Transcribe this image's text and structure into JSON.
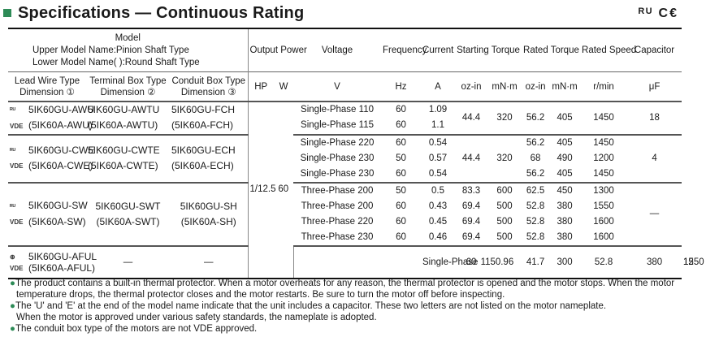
{
  "title": "Specifications — Continuous Rating",
  "certifications": "ᴿᵁ C€",
  "header": {
    "model": "Model",
    "upper_model": "Upper Model Name:Pinion Shaft Type",
    "lower_model": "Lower Model Name( ):Round Shaft Type",
    "lead_wire": "Lead Wire Type",
    "terminal_box": "Terminal Box Type",
    "conduit_box": "Conduit Box Type",
    "dim1": "Dimension ①",
    "dim2": "Dimension ②",
    "dim3": "Dimension ③",
    "output_power": "Output Power",
    "voltage": "Voltage",
    "frequency": "Frequency",
    "current": "Current",
    "starting_torque": "Starting Torque",
    "rated_torque": "Rated Torque",
    "rated_speed": "Rated Speed",
    "capacitor": "Capacitor",
    "u_hp": "HP",
    "u_w": "W",
    "u_v": "V",
    "u_hz": "Hz",
    "u_a": "A",
    "u_ozin": "oz-in",
    "u_nm": "mN·m",
    "u_ozin2": "oz-in",
    "u_nm2": "mN·m",
    "u_rmin": "r/min",
    "u_uf": "μF"
  },
  "output": {
    "hp": "1/12.5",
    "w": "60"
  },
  "groups": [
    {
      "lead": "5IK60GU-AWU",
      "lead_round": "(5IK60A-AWU)",
      "term": "5IK60GU-AWTU",
      "term_round": "(5IK60A-AWTU)",
      "cond": "5IK60GU-FCH",
      "cond_round": "(5IK60A-FCH)",
      "rows": [
        {
          "voltage": "Single-Phase 110",
          "freq": "60",
          "current": "1.09"
        },
        {
          "voltage": "Single-Phase 115",
          "freq": "60",
          "current": "1.1"
        }
      ],
      "st_oz": "44.4",
      "st_nm": "320",
      "rt_oz": "56.2",
      "rt_nm": "405",
      "speed": "1450",
      "cap": "18"
    },
    {
      "lead": "5IK60GU-CWE",
      "lead_round": "(5IK60A-CWE)",
      "term": "5IK60GU-CWTE",
      "term_round": "(5IK60A-CWTE)",
      "cond": "5IK60GU-ECH",
      "cond_round": "(5IK60A-ECH)",
      "rows": [
        {
          "voltage": "Single-Phase 220",
          "freq": "60",
          "current": "0.54",
          "rt_oz": "56.2",
          "rt_nm": "405",
          "speed": "1450"
        },
        {
          "voltage": "Single-Phase 230",
          "freq": "50",
          "current": "0.57",
          "rt_oz": "68",
          "rt_nm": "490",
          "speed": "1200"
        },
        {
          "voltage": "Single-Phase 230",
          "freq": "60",
          "current": "0.54",
          "rt_oz": "56.2",
          "rt_nm": "405",
          "speed": "1450"
        }
      ],
      "st_oz": "44.4",
      "st_nm": "320",
      "cap": "4"
    },
    {
      "lead": "5IK60GU-SW",
      "lead_round": "(5IK60A-SW)",
      "term": "5IK60GU-SWT",
      "term_round": "(5IK60A-SWT)",
      "cond": "5IK60GU-SH",
      "cond_round": "(5IK60A-SH)",
      "rows": [
        {
          "voltage": "Three-Phase 200",
          "freq": "50",
          "current": "0.5",
          "st_oz": "83.3",
          "st_nm": "600",
          "rt_oz": "62.5",
          "rt_nm": "450",
          "speed": "1300"
        },
        {
          "voltage": "Three-Phase 200",
          "freq": "60",
          "current": "0.43",
          "st_oz": "69.4",
          "st_nm": "500",
          "rt_oz": "52.8",
          "rt_nm": "380",
          "speed": "1550"
        },
        {
          "voltage": "Three-Phase 220",
          "freq": "60",
          "current": "0.45",
          "st_oz": "69.4",
          "st_nm": "500",
          "rt_oz": "52.8",
          "rt_nm": "380",
          "speed": "1600"
        },
        {
          "voltage": "Three-Phase 230",
          "freq": "60",
          "current": "0.46",
          "st_oz": "69.4",
          "st_nm": "500",
          "rt_oz": "52.8",
          "rt_nm": "380",
          "speed": "1600"
        }
      ],
      "cap": "—"
    },
    {
      "lead": "5IK60GU-AFUL",
      "lead_round": "(5IK60A-AFUL)",
      "term": "—",
      "cond": "—",
      "rows": [
        {
          "voltage": "Single-Phase 115",
          "freq": "60",
          "current": "0.96",
          "st_oz": "41.7",
          "st_nm": "300",
          "rt_oz": "52.8",
          "rt_nm": "380",
          "speed": "1550"
        }
      ],
      "cap": "12"
    }
  ],
  "notes": [
    "The product contains a built-in thermal protector. When a motor overheats for any reason, the thermal protector is opened and the motor stops. When the motor",
    "temperature drops, the thermal protector closes and the motor restarts. Be sure to turn the motor off before inspecting.",
    "The 'U' and 'E' at the end of the model name indicate that the unit includes a capacitor. These two letters are not listed on the motor nameplate.",
    "When the motor is approved under various safety standards, the nameplate is adopted.",
    "The conduit box type of the motors are not VDE approved."
  ],
  "marks": {
    "ul": "ᴿᵁ",
    "vde": "VDE",
    "csa": "⊕"
  },
  "accent_color": "#2e8b57"
}
